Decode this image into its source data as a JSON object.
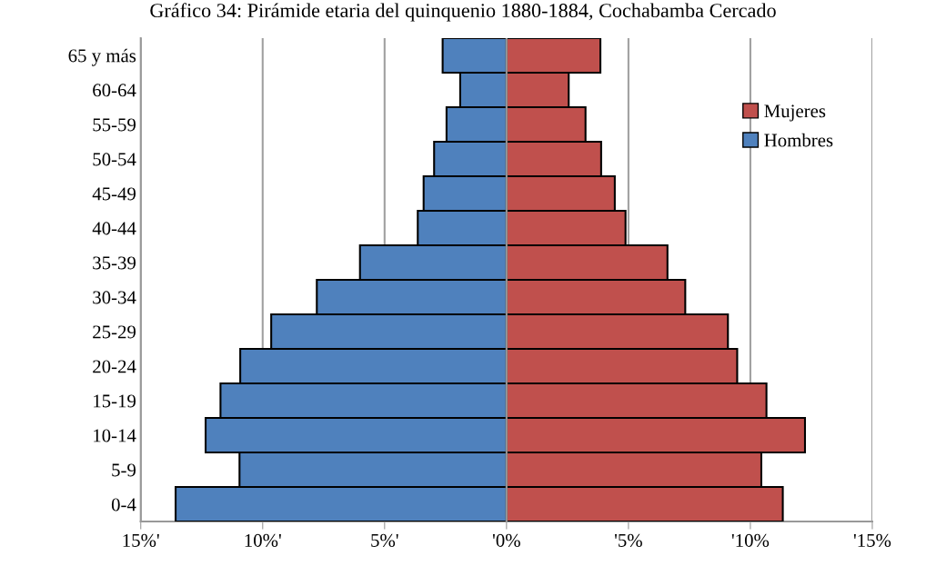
{
  "chart_data": {
    "type": "bar",
    "orientation": "horizontal",
    "title": "Gráfico 34: Pirámide etaria del quinquenio 1880-1884, Cochabamba Cercado",
    "categories": [
      "65 y más",
      "60-64",
      "55-59",
      "50-54",
      "45-49",
      "40-44",
      "35-39",
      "30-34",
      "25-29",
      "20-24",
      "15-19",
      "10-14",
      "5-9",
      "0-4"
    ],
    "series": [
      {
        "name": "Mujeres",
        "color": "#c0504d",
        "values": [
          3.85,
          2.55,
          3.24,
          3.88,
          4.44,
          4.88,
          6.6,
          7.33,
          9.08,
          9.46,
          10.66,
          12.24,
          10.45,
          11.33
        ]
      },
      {
        "name": "Hombres",
        "color": "#4f81bd",
        "values": [
          -2.62,
          -1.9,
          -2.46,
          -2.97,
          -3.4,
          -3.64,
          -6.01,
          -7.78,
          -9.65,
          -10.92,
          -11.73,
          -12.34,
          -10.95,
          -13.57
        ]
      }
    ],
    "xlim": [
      -15,
      15
    ],
    "xticks": [
      {
        "value": -15,
        "label": "15%'"
      },
      {
        "value": -10,
        "label": "10%'"
      },
      {
        "value": -5,
        "label": "5%'"
      },
      {
        "value": 0,
        "label": "'0%"
      },
      {
        "value": 5,
        "label": "'5%"
      },
      {
        "value": 10,
        "label": "'10%"
      },
      {
        "value": 15,
        "label": "'15%"
      }
    ],
    "stacked": true,
    "grid": "x",
    "legend": "top right"
  }
}
